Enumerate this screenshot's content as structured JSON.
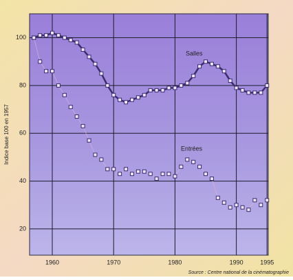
{
  "chart_data": {
    "type": "line",
    "y_label": "Indice base 100 en 1957",
    "source": "Source : Centre national de la cinématographie",
    "x": [
      1957,
      1958,
      1959,
      1960,
      1961,
      1962,
      1963,
      1964,
      1965,
      1966,
      1967,
      1968,
      1969,
      1970,
      1971,
      1972,
      1973,
      1974,
      1975,
      1976,
      1977,
      1978,
      1979,
      1980,
      1981,
      1982,
      1983,
      1984,
      1985,
      1986,
      1987,
      1988,
      1989,
      1990,
      1991,
      1992,
      1993,
      1994,
      1995
    ],
    "series": [
      {
        "name": "Salles",
        "color": "#3b2c6e",
        "line": true,
        "values": [
          100,
          101,
          101,
          102,
          101,
          100,
          99,
          98,
          95,
          92,
          89,
          85,
          80,
          76,
          74,
          73,
          74,
          75,
          76,
          78,
          78,
          78,
          79,
          79,
          80,
          81,
          84,
          88,
          90,
          89,
          88,
          86,
          82,
          79,
          78,
          77,
          77,
          77,
          80
        ]
      },
      {
        "name": "Entrées",
        "color": "#3b2c6e",
        "line": false,
        "values": [
          100,
          90,
          86,
          86,
          80,
          76,
          71,
          67,
          63,
          57,
          51,
          49,
          45,
          45,
          43,
          45,
          43,
          44,
          44,
          43,
          41,
          43,
          43,
          42,
          46,
          49,
          48,
          46,
          43,
          41,
          33,
          31,
          29,
          30,
          29,
          28,
          32,
          30,
          32
        ]
      }
    ],
    "xlim": [
      1956.3,
      1995.2
    ],
    "xticks": [
      1960,
      1970,
      1980,
      1990,
      1995
    ],
    "ylim": [
      9,
      110
    ],
    "yticks": [
      20,
      40,
      60,
      80,
      100
    ],
    "grid": true
  }
}
